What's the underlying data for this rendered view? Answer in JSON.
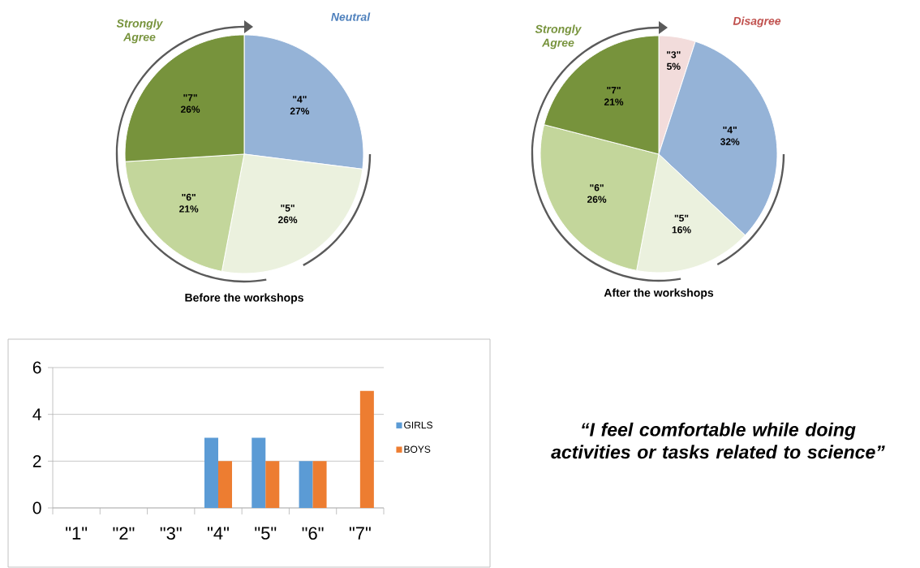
{
  "chart_data": [
    {
      "type": "pie",
      "title": "Before the workshops",
      "categories": [
        "\"4\"",
        "\"5\"",
        "\"6\"",
        "\"7\""
      ],
      "values": [
        27,
        26,
        21,
        26
      ],
      "value_labels": [
        "27%",
        "26%",
        "21%",
        "26%"
      ],
      "colors": [
        "#95b3d7",
        "#ebf1de",
        "#c3d69b",
        "#77933c"
      ],
      "annotations": [
        "Strongly Agree",
        "Neutral"
      ]
    },
    {
      "type": "pie",
      "title": "After the workshops",
      "categories": [
        "\"3\"",
        "\"4\"",
        "\"5\"",
        "\"6\"",
        "\"7\""
      ],
      "values": [
        5,
        32,
        16,
        26,
        21
      ],
      "value_labels": [
        "5%",
        "32%",
        "16%",
        "26%",
        "21%"
      ],
      "colors": [
        "#f2dcdb",
        "#95b3d7",
        "#ebf1de",
        "#c3d69b",
        "#77933c"
      ],
      "annotations": [
        "Strongly Agree",
        "Disagree"
      ]
    },
    {
      "type": "bar",
      "categories": [
        "\"1\"",
        "\"2\"",
        "\"3\"",
        "\"4\"",
        "\"5\"",
        "\"6\"",
        "\"7\""
      ],
      "series": [
        {
          "name": "GIRLS",
          "color": "#5b9bd5",
          "values": [
            0,
            0,
            0,
            3,
            3,
            2,
            0
          ]
        },
        {
          "name": "BOYS",
          "color": "#ed7d31",
          "values": [
            0,
            0,
            0,
            2,
            2,
            2,
            5
          ]
        }
      ],
      "ylim": [
        0,
        6
      ],
      "yticks": [
        0,
        2,
        4,
        6
      ],
      "grid": "y",
      "legend": "right"
    },
    {
      "type": "other",
      "title": "“I feel comfortable while doing activities or tasks related to science”"
    }
  ]
}
